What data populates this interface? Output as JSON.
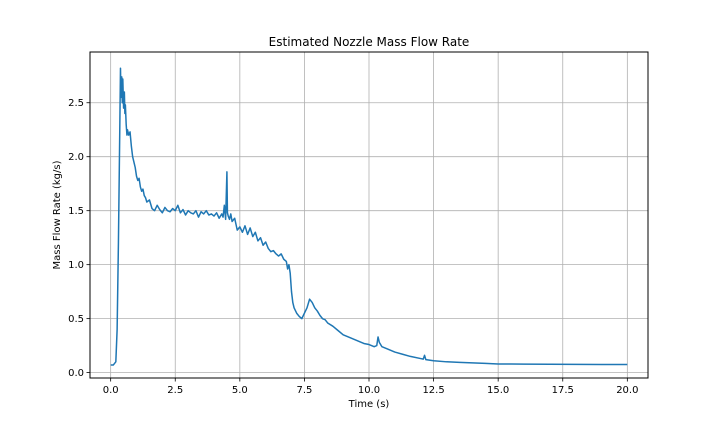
{
  "chart_data": {
    "type": "line",
    "title": "Estimated Nozzle Mass Flow Rate",
    "xlabel": "Time (s)",
    "ylabel": "Mass Flow Rate (kg/s)",
    "xlim": [
      -0.8,
      20.8
    ],
    "ylim": [
      -0.05,
      2.97
    ],
    "xticks": [
      0.0,
      2.5,
      5.0,
      7.5,
      10.0,
      12.5,
      15.0,
      17.5,
      20.0
    ],
    "xtick_labels": [
      "0.0",
      "2.5",
      "5.0",
      "7.5",
      "10.0",
      "12.5",
      "15.0",
      "17.5",
      "20.0"
    ],
    "yticks": [
      0.0,
      0.5,
      1.0,
      1.5,
      2.0,
      2.5
    ],
    "ytick_labels": [
      "0.0",
      "0.5",
      "1.0",
      "1.5",
      "2.0",
      "2.5"
    ],
    "grid": true,
    "line_color": "#1f77b4",
    "series": [
      {
        "x": [
          0.0,
          0.1,
          0.2,
          0.25,
          0.3,
          0.35,
          0.38,
          0.4,
          0.43,
          0.45,
          0.47,
          0.5,
          0.53,
          0.55,
          0.57,
          0.6,
          0.63,
          0.65,
          0.7,
          0.75,
          0.8,
          0.85,
          0.9,
          0.95,
          1.0,
          1.05,
          1.1,
          1.15,
          1.2,
          1.25,
          1.3,
          1.35,
          1.4,
          1.5,
          1.6,
          1.7,
          1.8,
          1.9,
          2.0,
          2.1,
          2.2,
          2.3,
          2.4,
          2.5,
          2.6,
          2.7,
          2.8,
          2.9,
          3.0,
          3.1,
          3.2,
          3.3,
          3.4,
          3.5,
          3.6,
          3.7,
          3.8,
          3.9,
          4.0,
          4.1,
          4.2,
          4.3,
          4.35,
          4.4,
          4.45,
          4.5,
          4.52,
          4.55,
          4.6,
          4.65,
          4.7,
          4.8,
          4.9,
          5.0,
          5.1,
          5.2,
          5.3,
          5.4,
          5.5,
          5.6,
          5.7,
          5.8,
          5.9,
          6.0,
          6.1,
          6.2,
          6.3,
          6.4,
          6.5,
          6.6,
          6.7,
          6.8,
          6.85,
          6.9,
          6.95,
          7.0,
          7.05,
          7.1,
          7.2,
          7.3,
          7.4,
          7.5,
          7.6,
          7.7,
          7.8,
          7.9,
          8.0,
          8.1,
          8.2,
          8.3,
          8.4,
          8.6,
          8.8,
          9.0,
          9.2,
          9.5,
          9.8,
          10.0,
          10.2,
          10.3,
          10.35,
          10.4,
          10.5,
          10.7,
          11.0,
          11.3,
          11.6,
          12.0,
          12.1,
          12.15,
          12.2,
          12.5,
          13.0,
          13.5,
          14.0,
          14.5,
          15.0,
          15.5,
          16.0,
          17.0,
          18.0,
          19.0,
          20.0
        ],
        "y": [
          0.07,
          0.07,
          0.1,
          0.4,
          1.2,
          2.2,
          2.82,
          2.55,
          2.74,
          2.5,
          2.72,
          2.45,
          2.6,
          2.4,
          2.48,
          2.3,
          2.2,
          2.25,
          2.2,
          2.23,
          2.1,
          2.0,
          1.95,
          1.9,
          1.82,
          1.78,
          1.8,
          1.72,
          1.68,
          1.7,
          1.64,
          1.62,
          1.58,
          1.6,
          1.52,
          1.5,
          1.55,
          1.51,
          1.48,
          1.53,
          1.5,
          1.49,
          1.52,
          1.5,
          1.55,
          1.48,
          1.51,
          1.46,
          1.5,
          1.48,
          1.47,
          1.5,
          1.44,
          1.49,
          1.47,
          1.5,
          1.46,
          1.47,
          1.45,
          1.48,
          1.43,
          1.47,
          1.44,
          1.55,
          1.42,
          1.86,
          1.48,
          1.45,
          1.42,
          1.47,
          1.4,
          1.43,
          1.32,
          1.35,
          1.3,
          1.36,
          1.28,
          1.34,
          1.26,
          1.3,
          1.22,
          1.25,
          1.18,
          1.21,
          1.15,
          1.12,
          1.13,
          1.1,
          1.08,
          1.1,
          1.05,
          1.03,
          0.96,
          1.0,
          0.92,
          0.75,
          0.65,
          0.6,
          0.55,
          0.52,
          0.5,
          0.55,
          0.6,
          0.68,
          0.65,
          0.6,
          0.57,
          0.53,
          0.5,
          0.49,
          0.46,
          0.43,
          0.39,
          0.35,
          0.33,
          0.3,
          0.27,
          0.26,
          0.24,
          0.25,
          0.33,
          0.28,
          0.24,
          0.22,
          0.19,
          0.17,
          0.15,
          0.13,
          0.125,
          0.16,
          0.12,
          0.11,
          0.1,
          0.095,
          0.09,
          0.085,
          0.08,
          0.08,
          0.078,
          0.077,
          0.076,
          0.075,
          0.075
        ]
      }
    ]
  }
}
